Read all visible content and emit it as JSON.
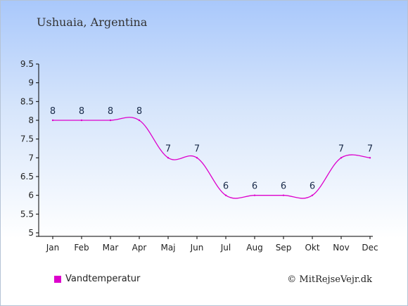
{
  "location": "Ushuaia, Argentina",
  "legend_label": "Vandtemperatur",
  "credit": "© MitRejseVejr.dk",
  "colors": {
    "line": "#dd00cc",
    "label": "#1a2b4a",
    "axis": "#000000"
  },
  "chart_data": {
    "type": "line",
    "categories": [
      "Jan",
      "Feb",
      "Mar",
      "Apr",
      "Maj",
      "Jun",
      "Jul",
      "Aug",
      "Sep",
      "Okt",
      "Nov",
      "Dec"
    ],
    "series": [
      {
        "name": "Vandtemperatur",
        "values": [
          8,
          8,
          8,
          8,
          7,
          7,
          6,
          6,
          6,
          6,
          7,
          7
        ]
      }
    ],
    "ylim": [
      5,
      9.5
    ],
    "yticks": [
      "5",
      "5.5",
      "6",
      "6.5",
      "7",
      "7.5",
      "8",
      "8.5",
      "9",
      "9.5"
    ],
    "grid": false,
    "legend_position": "bottom-left"
  }
}
